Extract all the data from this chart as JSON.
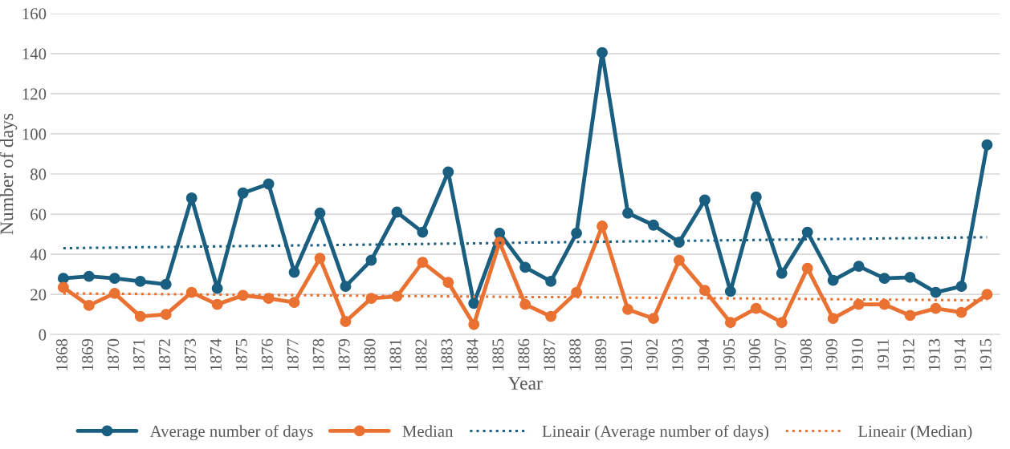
{
  "chart_data": {
    "type": "line",
    "xlabel": "Year",
    "ylabel": "Number of days",
    "categories": [
      "1868",
      "1869",
      "1870",
      "1871",
      "1872",
      "1873",
      "1874",
      "1875",
      "1876",
      "1877",
      "1878",
      "1879",
      "1880",
      "1881",
      "1882",
      "1883",
      "1884",
      "1885",
      "1886",
      "1887",
      "1888",
      "1889",
      "1901",
      "1902",
      "1903",
      "1904",
      "1905",
      "1906",
      "1907",
      "1908",
      "1909",
      "1910",
      "1911",
      "1912",
      "1913",
      "1914",
      "1915"
    ],
    "series": [
      {
        "name": "Average number of days",
        "color": "#1a5e80",
        "marker": "circle",
        "line_style": "solid",
        "values": [
          28,
          29,
          28,
          26.5,
          25,
          68,
          23,
          70.5,
          75,
          31,
          60.5,
          24,
          37,
          61,
          51,
          81,
          15.5,
          50.5,
          33.5,
          26.5,
          50.5,
          140.5,
          60.5,
          54.5,
          46,
          67,
          21.5,
          68.5,
          30.5,
          51,
          27,
          34,
          28,
          28.5,
          21,
          24,
          94.5
        ]
      },
      {
        "name": "Median",
        "color": "#e97132",
        "marker": "circle",
        "line_style": "solid",
        "values": [
          23.5,
          14.5,
          20.5,
          9,
          10,
          21,
          15,
          19.5,
          18,
          16,
          38,
          6.5,
          18,
          19,
          36,
          26,
          5,
          46,
          15,
          9,
          21,
          54,
          12.5,
          8,
          37,
          22,
          6,
          13,
          6,
          33,
          8,
          15,
          15,
          9.5,
          13,
          11,
          20
        ]
      },
      {
        "name": "Lineair (Average number of days)",
        "color": "#1a5e80",
        "marker": "none",
        "line_style": "dotted",
        "values": [
          43.0,
          43.2,
          43.3,
          43.5,
          43.6,
          43.8,
          43.9,
          44.1,
          44.2,
          44.4,
          44.5,
          44.7,
          44.8,
          45.0,
          45.1,
          45.3,
          45.4,
          45.6,
          45.8,
          45.9,
          46.1,
          46.2,
          46.4,
          46.5,
          46.7,
          46.8,
          47.0,
          47.1,
          47.3,
          47.4,
          47.6,
          47.7,
          47.9,
          48.0,
          48.2,
          48.3,
          48.5
        ]
      },
      {
        "name": "Lineair (Median)",
        "color": "#e97132",
        "marker": "none",
        "line_style": "dotted",
        "values": [
          20.5,
          20.4,
          20.3,
          20.2,
          20.1,
          20.0,
          19.9,
          19.8,
          19.7,
          19.6,
          19.5,
          19.4,
          19.3,
          19.2,
          19.1,
          19.0,
          18.9,
          18.8,
          18.7,
          18.7,
          18.6,
          18.5,
          18.4,
          18.3,
          18.2,
          18.1,
          18.0,
          17.9,
          17.8,
          17.7,
          17.6,
          17.5,
          17.4,
          17.3,
          17.2,
          17.1,
          17.0
        ]
      }
    ],
    "ylim": [
      0,
      160
    ],
    "yticks": [
      0,
      20,
      40,
      60,
      80,
      100,
      120,
      140,
      160
    ],
    "grid": "y",
    "legend": "bottom"
  }
}
